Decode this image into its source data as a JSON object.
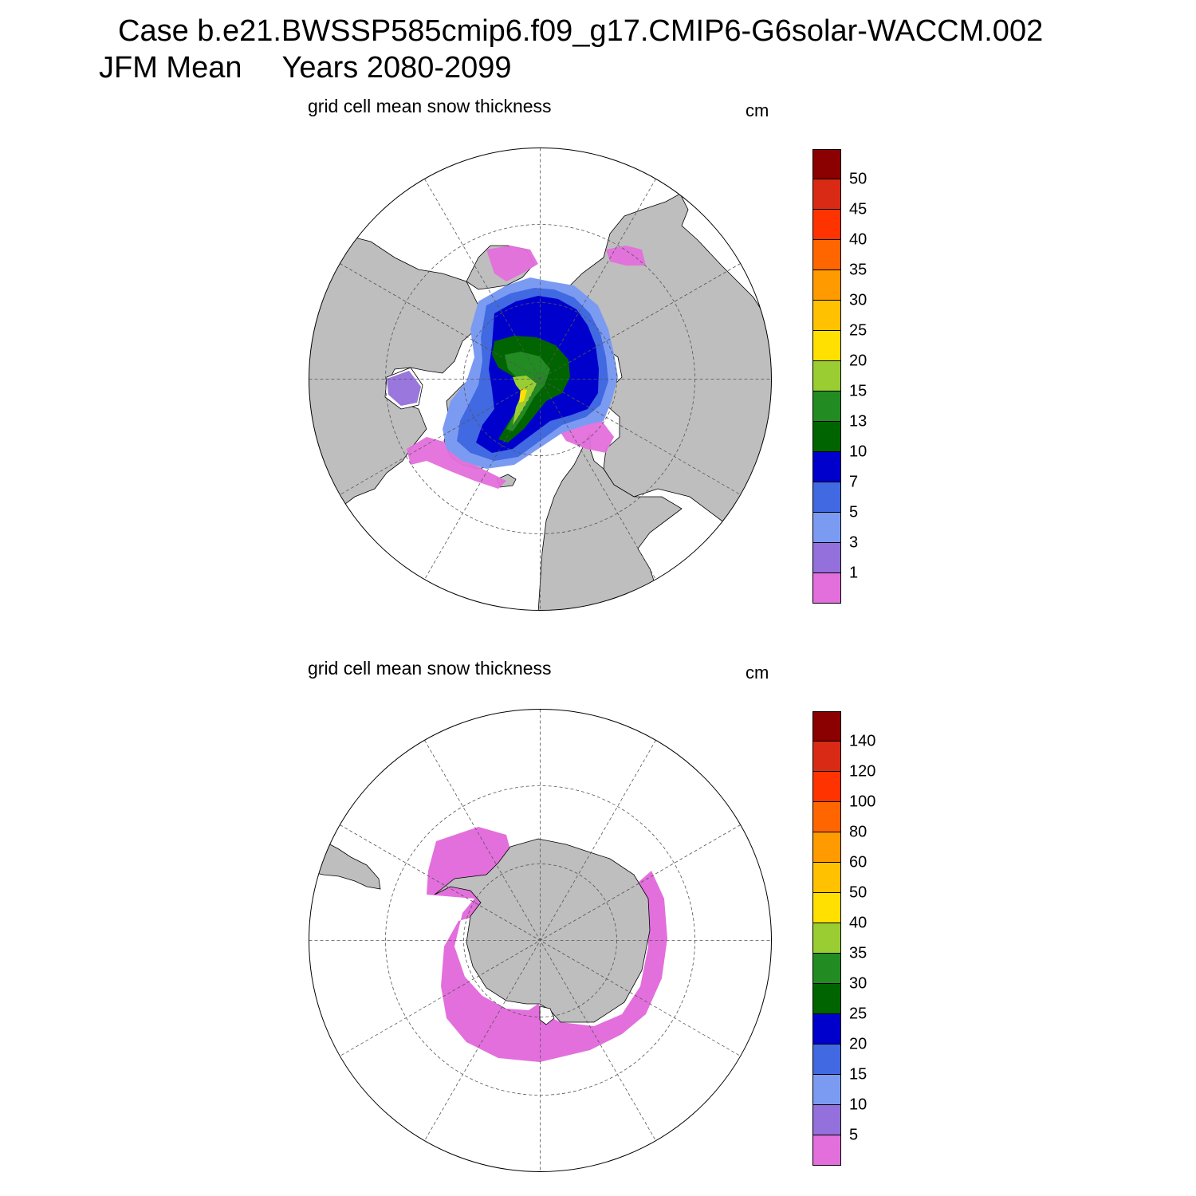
{
  "header": {
    "case_line": "Case b.e21.BWSSP585cmip6.f09_g17.CMIP6-G6solar-WACCM.002",
    "season": "JFM Mean",
    "years": "Years 2080-2099"
  },
  "colors": {
    "land": "#bebebe",
    "ocean": "#ffffff",
    "scale": [
      "#e36fdc",
      "#9370db",
      "#7b9bf2",
      "#4169e1",
      "#0000cd",
      "#006400",
      "#228b22",
      "#9acd32",
      "#ffe000",
      "#ffc100",
      "#ff9a00",
      "#ff6600",
      "#ff3300",
      "#d82a15",
      "#8b0000"
    ]
  },
  "north_panel": {
    "title": "grid cell mean snow thickness",
    "units": "cm",
    "hemisphere": "Arctic",
    "colorbar_labels": [
      "1",
      "3",
      "5",
      "7",
      "10",
      "13",
      "15",
      "20",
      "25",
      "30",
      "35",
      "40",
      "45",
      "50"
    ]
  },
  "south_panel": {
    "title": "grid cell mean snow thickness",
    "units": "cm",
    "hemisphere": "Antarctic",
    "colorbar_labels": [
      "5",
      "10",
      "15",
      "20",
      "25",
      "30",
      "35",
      "40",
      "50",
      "60",
      "80",
      "100",
      "120",
      "140"
    ]
  }
}
